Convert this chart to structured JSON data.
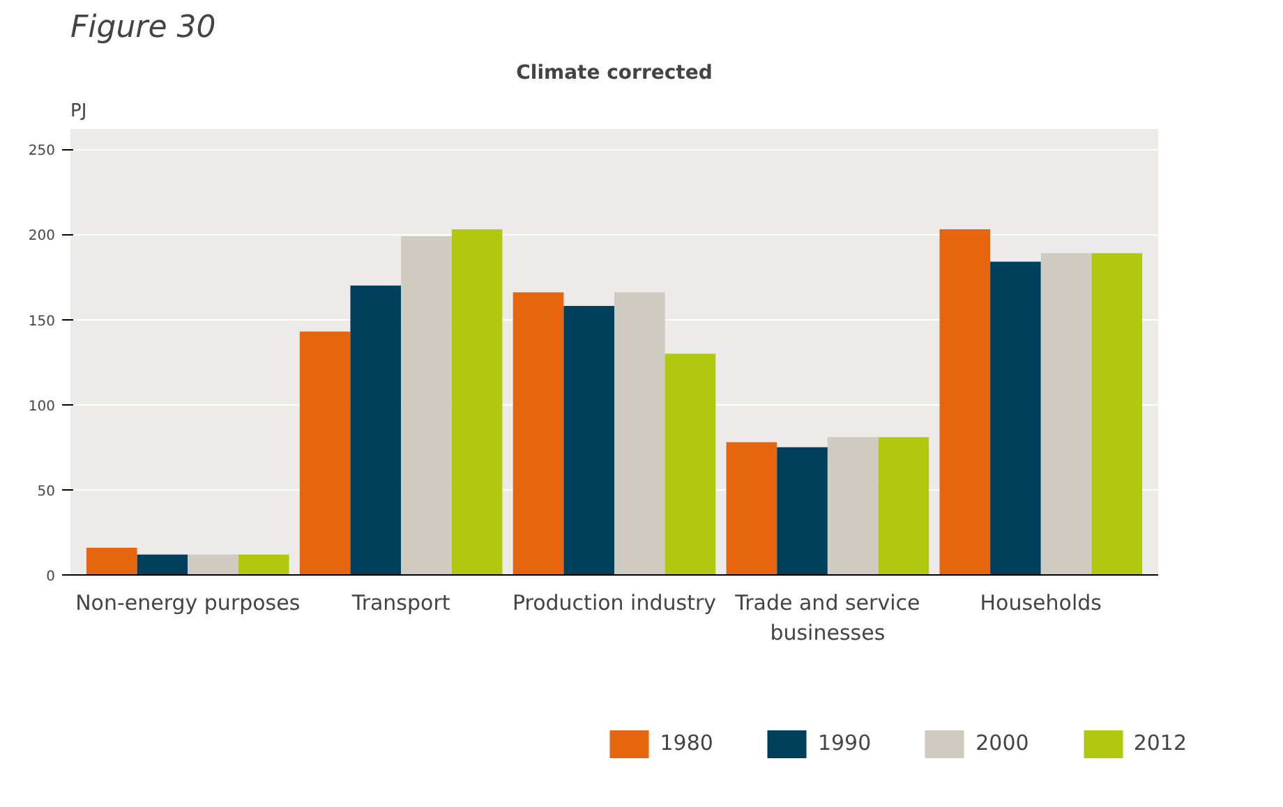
{
  "chart_data": {
    "type": "bar",
    "title": "Figure 30",
    "subtitle": "Climate corrected",
    "ylabel": "PJ",
    "categories": [
      "Non-energy purposes",
      "Transport",
      "Production industry",
      "Trade and service businesses",
      "Households"
    ],
    "series": [
      {
        "name": "1980",
        "color": "#e8650f",
        "values": [
          16,
          143,
          166,
          78,
          203
        ]
      },
      {
        "name": "1990",
        "color": "#003f5c",
        "values": [
          12,
          170,
          158,
          75,
          184
        ]
      },
      {
        "name": "2000",
        "color": "#cfcbc0",
        "values": [
          12,
          199,
          166,
          81,
          189
        ]
      },
      {
        "name": "2012",
        "color": "#b2c80e",
        "values": [
          12,
          203,
          130,
          81,
          189
        ]
      }
    ],
    "ylim": [
      0,
      262
    ],
    "yticks": [
      0,
      50,
      100,
      150,
      200,
      250
    ],
    "grid": "y",
    "legend": "bottom"
  }
}
